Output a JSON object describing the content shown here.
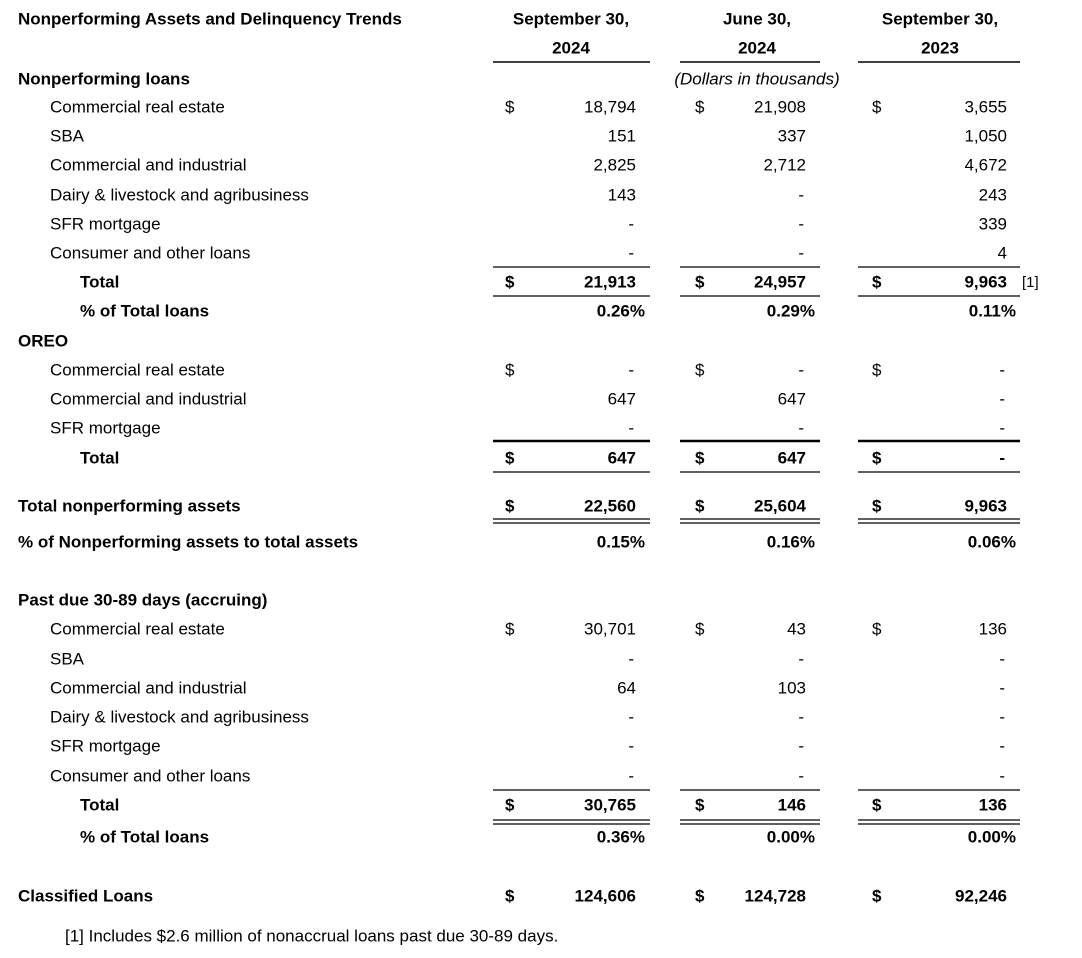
{
  "title": "Nonperforming Assets and Delinquency Trends",
  "columns": [
    {
      "line1": "September 30,",
      "line2": "2024"
    },
    {
      "line1": "June 30,",
      "line2": "2024"
    },
    {
      "line1": "September 30,",
      "line2": "2023"
    }
  ],
  "units": "(Dollars in thousands)",
  "rows": [
    {
      "label": "Nonperforming loans"
    },
    {
      "label": "Commercial real estate",
      "cells": [
        {
          "dollar": "$",
          "value": "18,794"
        },
        {
          "dollar": "$",
          "value": "21,908"
        },
        {
          "dollar": "$",
          "value": "3,655"
        }
      ]
    },
    {
      "label": "SBA",
      "cells": [
        {
          "value": "151"
        },
        {
          "value": "337"
        },
        {
          "value": "1,050"
        }
      ]
    },
    {
      "label": "Commercial and industrial",
      "cells": [
        {
          "value": "2,825"
        },
        {
          "value": "2,712"
        },
        {
          "value": "4,672"
        }
      ]
    },
    {
      "label": "Dairy & livestock and agribusiness",
      "cells": [
        {
          "value": "143"
        },
        {
          "value": "-"
        },
        {
          "value": "243"
        }
      ]
    },
    {
      "label": "SFR mortgage",
      "cells": [
        {
          "value": "-"
        },
        {
          "value": "-"
        },
        {
          "value": "339"
        }
      ]
    },
    {
      "label": "Consumer and other loans",
      "cells": [
        {
          "value": "-"
        },
        {
          "value": "-"
        },
        {
          "value": "4"
        }
      ]
    },
    {
      "label": "Total",
      "cells": [
        {
          "dollar": "$",
          "value": "21,913"
        },
        {
          "dollar": "$",
          "value": "24,957"
        },
        {
          "dollar": "$",
          "value": "9,963"
        }
      ],
      "note": "[1]"
    },
    {
      "label": "% of Total loans",
      "cells": [
        {
          "value": "0.26%"
        },
        {
          "value": "0.29%"
        },
        {
          "value": "0.11%"
        }
      ]
    },
    {
      "label": "OREO"
    },
    {
      "label": "Commercial real estate",
      "cells": [
        {
          "dollar": "$",
          "value": "-"
        },
        {
          "dollar": "$",
          "value": "-"
        },
        {
          "dollar": "$",
          "value": "-"
        }
      ]
    },
    {
      "label": "Commercial and industrial",
      "cells": [
        {
          "value": "647"
        },
        {
          "value": "647"
        },
        {
          "value": "-"
        }
      ]
    },
    {
      "label": "SFR mortgage",
      "cells": [
        {
          "value": "-"
        },
        {
          "value": "-"
        },
        {
          "value": "-"
        }
      ]
    },
    {
      "label": "Total",
      "cells": [
        {
          "dollar": "$",
          "value": "647"
        },
        {
          "dollar": "$",
          "value": "647"
        },
        {
          "dollar": "$",
          "value": "-"
        }
      ]
    },
    {
      "label": "Total nonperforming assets",
      "cells": [
        {
          "dollar": "$",
          "value": "22,560"
        },
        {
          "dollar": "$",
          "value": "25,604"
        },
        {
          "dollar": "$",
          "value": "9,963"
        }
      ]
    },
    {
      "label": "% of Nonperforming assets to total assets",
      "cells": [
        {
          "value": "0.15%"
        },
        {
          "value": "0.16%"
        },
        {
          "value": "0.06%"
        }
      ]
    },
    {
      "label": "Past due 30-89 days (accruing)"
    },
    {
      "label": "Commercial real estate",
      "cells": [
        {
          "dollar": "$",
          "value": "30,701"
        },
        {
          "dollar": "$",
          "value": "43"
        },
        {
          "dollar": "$",
          "value": "136"
        }
      ]
    },
    {
      "label": "SBA",
      "cells": [
        {
          "value": "-"
        },
        {
          "value": "-"
        },
        {
          "value": "-"
        }
      ]
    },
    {
      "label": "Commercial and industrial",
      "cells": [
        {
          "value": "64"
        },
        {
          "value": "103"
        },
        {
          "value": "-"
        }
      ]
    },
    {
      "label": "Dairy & livestock and agribusiness",
      "cells": [
        {
          "value": "-"
        },
        {
          "value": "-"
        },
        {
          "value": "-"
        }
      ]
    },
    {
      "label": "SFR mortgage",
      "cells": [
        {
          "value": "-"
        },
        {
          "value": "-"
        },
        {
          "value": "-"
        }
      ]
    },
    {
      "label": "Consumer and other loans",
      "cells": [
        {
          "value": "-"
        },
        {
          "value": "-"
        },
        {
          "value": "-"
        }
      ]
    },
    {
      "label": "Total",
      "cells": [
        {
          "dollar": "$",
          "value": "30,765"
        },
        {
          "dollar": "$",
          "value": "146"
        },
        {
          "dollar": "$",
          "value": "136"
        }
      ]
    },
    {
      "label": "% of Total loans",
      "cells": [
        {
          "value": "0.36%"
        },
        {
          "value": "0.00%"
        },
        {
          "value": "0.00%"
        }
      ]
    },
    {
      "label": "Classified Loans",
      "cells": [
        {
          "dollar": "$",
          "value": "124,606"
        },
        {
          "dollar": "$",
          "value": "124,728"
        },
        {
          "dollar": "$",
          "value": "92,246"
        }
      ]
    }
  ],
  "footnote": "[1]  Includes $2.6 million of nonaccrual loans past due 30-89 days."
}
